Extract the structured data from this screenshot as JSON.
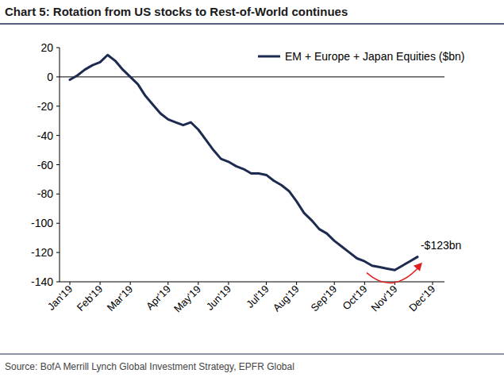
{
  "chart_data": {
    "type": "line",
    "title": "Chart 5: Rotation from US stocks to Rest-of-World continues",
    "source": "Source:  BofA Merrill Lynch Global Investment Strategy, EPFR Global",
    "annotation": "-$123bn",
    "categories": [
      "Jan'19",
      null,
      null,
      null,
      "Feb'19",
      null,
      null,
      null,
      "Mar'19",
      null,
      null,
      null,
      null,
      "Apr'19",
      null,
      null,
      null,
      "May'19",
      null,
      null,
      null,
      "Jun'19",
      null,
      null,
      null,
      null,
      "Jul'19",
      null,
      null,
      null,
      "Aug'19",
      null,
      null,
      null,
      null,
      "Sep'19",
      null,
      null,
      null,
      "Oct'19",
      null,
      null,
      null,
      "Nov'19",
      null,
      null,
      null,
      null,
      "Dec'19"
    ],
    "series": [
      {
        "name": "EM + Europe + Japan Equities ($bn)",
        "color": "#1c2b4f",
        "values": [
          -2,
          1,
          5,
          8,
          10,
          15,
          11,
          5,
          0,
          -5,
          -13,
          -19,
          -25,
          -29,
          -31,
          -33,
          -31,
          -36,
          -43,
          -50,
          -56,
          -58,
          -61,
          -63,
          -66,
          -66,
          -67,
          -71,
          -74,
          -78,
          -85,
          -93,
          -98,
          -104,
          -107,
          -112,
          -116,
          -120,
          -124,
          -126,
          -129,
          -130,
          -131,
          -132,
          -129,
          -126,
          -123,
          null,
          null
        ]
      }
    ],
    "ylim": [
      -140,
      20
    ],
    "yticks": [
      -140,
      -120,
      -100,
      -80,
      -60,
      -40,
      -20,
      0,
      20
    ],
    "grid": false,
    "legend": "top-right"
  }
}
